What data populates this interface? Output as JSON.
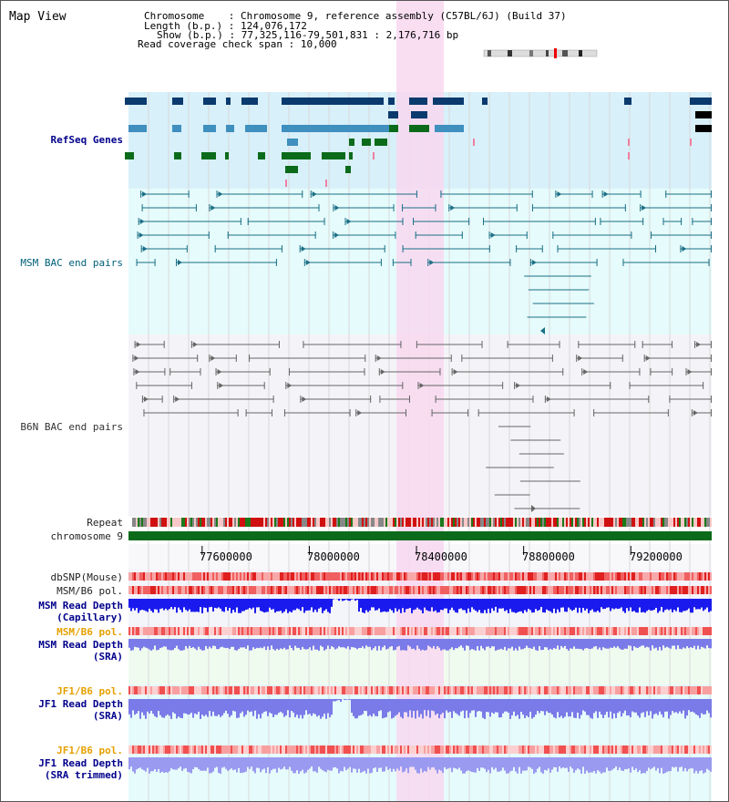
{
  "page": {
    "title": "Map View"
  },
  "info": {
    "chromosome_label": "Chromosome",
    "chromosome_value": "Chromosome 9, reference assembly (C57BL/6J) (Build 37)",
    "length_label": "Length (b.p.)",
    "length_value": "124,076,172",
    "show_label": "Show (b.p.)",
    "show_value": "77,325,116-79,501,831 : 2,176,716 bp",
    "span_label": "Read coverage check span",
    "span_value": "10,000"
  },
  "tracks": {
    "refseq": "RefSeq Genes",
    "msm_bac": "MSM BAC end pairs",
    "b6n_bac": "B6N BAC end pairs",
    "repeat": "Repeat",
    "chromosome": "chromosome 9",
    "dbsnp": "dbSNP(Mouse)",
    "msm_pol": "MSM/B6 pol.",
    "msm_depth_cap_1": "MSM Read Depth",
    "msm_depth_cap_2": "(Capillary)",
    "msm_pol_sra": "MSM/B6 pol.",
    "msm_depth_sra_1": "MSM Read Depth",
    "msm_depth_sra_2": "(SRA)",
    "jf1_pol": "JF1/B6 pol.",
    "jf1_depth_1": "JF1 Read Depth",
    "jf1_depth_2": "(SRA)",
    "jf1_pol_t": "JF1/B6 pol.",
    "jf1_depth_t_1": "JF1 Read Depth",
    "jf1_depth_t_2": "(SRA trimmed)"
  },
  "axis": {
    "ticks": [
      "77600000",
      "78000000",
      "78400000",
      "78800000",
      "79200000"
    ],
    "range": [
      77325116,
      79501831
    ]
  },
  "colors": {
    "highlight": "#f8d8f0",
    "refseq_bg": "#d8f0fa",
    "gene_navy": "#0a3a6e",
    "gene_steel": "#3f8fbf",
    "gene_green": "#0b6b1b",
    "bac_teal": "#1a6f86",
    "bac_gray": "#666666",
    "chrom_green": "#0b6b1b",
    "depth_blue": "#1a1aee",
    "depth_light": "#7a7ae8"
  }
}
